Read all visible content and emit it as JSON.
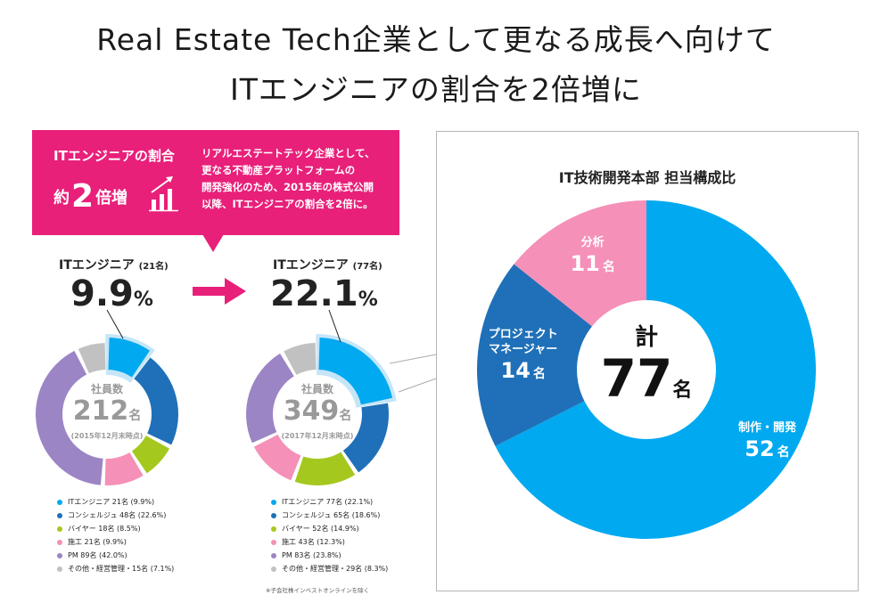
{
  "heading": {
    "line1": "Real Estate Tech企業として更なる成長へ向けて",
    "line2": "ITエンジニアの割合を2倍増に"
  },
  "callout": {
    "head": "ITエンジニアの割合",
    "big_pre": "約",
    "big_num": "2",
    "big_post": "倍増",
    "body_lines": [
      "リアルエステートテック企業として、",
      "更なる不動産プラットフォームの",
      "開発強化のため、2015年の株式公開",
      "以降、ITエンジニアの割合を2倍に。"
    ],
    "icon": "growth-bar-chart-icon",
    "color": "#e8207a"
  },
  "arrow_icon": "right-arrow-icon",
  "left_block": {
    "label_main": "ITエンジニア",
    "label_count": "(21名)",
    "pct": "9.9",
    "pct_unit": "%",
    "center_label": "社員数",
    "center_value": "212",
    "center_unit": "名",
    "center_date": "(2015年12月末時点)"
  },
  "right_block": {
    "label_main": "ITエンジニア",
    "label_count": "(77名)",
    "pct": "22.1",
    "pct_unit": "%",
    "center_label": "社員数",
    "center_value": "349",
    "center_unit": "名",
    "center_date": "(2017年12月末時点)"
  },
  "footnote": "※子会社株インベストオンラインを除く",
  "panel": {
    "title": "IT技術開発本部 担当構成比",
    "center_label": "計",
    "center_value": "77",
    "center_unit": "名"
  },
  "chart_data": [
    {
      "type": "pie",
      "title": "社員数 212名 (2015年12月末時点)",
      "categories": [
        "ITエンジニア",
        "コンシェルジュ",
        "バイヤー",
        "施工",
        "PM",
        "その他・経営管理"
      ],
      "values": [
        21,
        48,
        18,
        21,
        89,
        15
      ],
      "percents": [
        9.9,
        22.6,
        8.5,
        9.9,
        42.0,
        7.1
      ],
      "legend_text": [
        "ITエンジニア 21名 (9.9%)",
        "コンシェルジュ 48名 (22.6%)",
        "バイヤー 18名 (8.5%)",
        "施工 21名 (9.9%)",
        "PM 89名 (42.0%)",
        "その他・経営管理・15名 (7.1%)"
      ],
      "colors": [
        "#00a9f0",
        "#1f70b8",
        "#a5c81f",
        "#f590b8",
        "#9b85c5",
        "#c1c1c1"
      ]
    },
    {
      "type": "pie",
      "title": "社員数 349名 (2017年12月末時点)",
      "categories": [
        "ITエンジニア",
        "コンシェルジュ",
        "バイヤー",
        "施工",
        "PM",
        "その他・経営管理"
      ],
      "values": [
        77,
        65,
        52,
        43,
        83,
        29
      ],
      "percents": [
        22.1,
        18.6,
        14.9,
        12.3,
        23.8,
        8.3
      ],
      "legend_text": [
        "ITエンジニア 77名 (22.1%)",
        "コンシェルジュ 65名 (18.6%)",
        "バイヤー 52名 (14.9%)",
        "施工 43名 (12.3%)",
        "PM 83名 (23.8%)",
        "その他・経営管理・29名 (8.3%)"
      ],
      "colors": [
        "#00a9f0",
        "#1f70b8",
        "#a5c81f",
        "#f590b8",
        "#9b85c5",
        "#c1c1c1"
      ]
    },
    {
      "type": "pie",
      "title": "IT技術開発本部 担当構成比",
      "categories": [
        "制作・開発",
        "プロジェクトマネージャー",
        "分析"
      ],
      "category_lines": [
        [
          "制作・開発"
        ],
        [
          "プロジェクト",
          "マネージャー"
        ],
        [
          "分析"
        ]
      ],
      "values": [
        52,
        14,
        11
      ],
      "unit": "名",
      "colors": [
        "#00a9f0",
        "#1f70b8",
        "#f590b8"
      ]
    }
  ]
}
